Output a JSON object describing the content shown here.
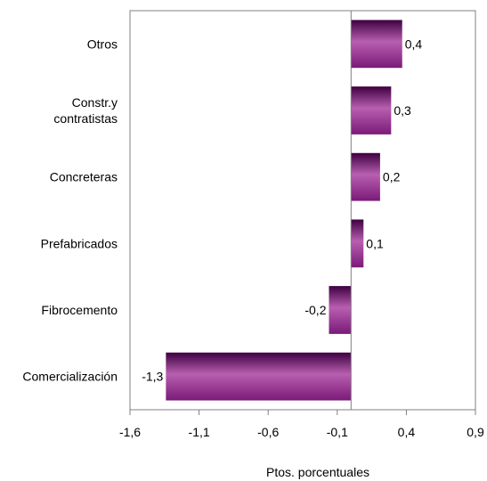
{
  "chart_data": {
    "type": "bar",
    "orientation": "horizontal",
    "categories": [
      [
        "Otros"
      ],
      [
        "Constr.y",
        "contratistas"
      ],
      [
        "Concreteras"
      ],
      [
        "Prefabricados"
      ],
      [
        "Fibrocemento"
      ],
      [
        "Comercialización"
      ]
    ],
    "values": [
      0.37,
      0.29,
      0.21,
      0.09,
      -0.16,
      -1.34
    ],
    "value_labels": [
      "0,4",
      "0,3",
      "0,2",
      "0,1",
      "-0,2",
      "-1,3"
    ],
    "xlabel": "Ptos. porcentuales",
    "xlim": [
      -1.6,
      0.9
    ],
    "xticks": [
      -1.6,
      -1.1,
      -0.6,
      -0.1,
      0.4,
      0.9
    ],
    "xtick_labels": [
      "-1,6",
      "-1,1",
      "-0,6",
      "-0,1",
      "0,4",
      "0,9"
    ],
    "bar_colors": {
      "light": "#b85fb0",
      "mid": "#7a1a78",
      "dark": "#3e0040"
    },
    "grid": false,
    "legend": "none"
  }
}
